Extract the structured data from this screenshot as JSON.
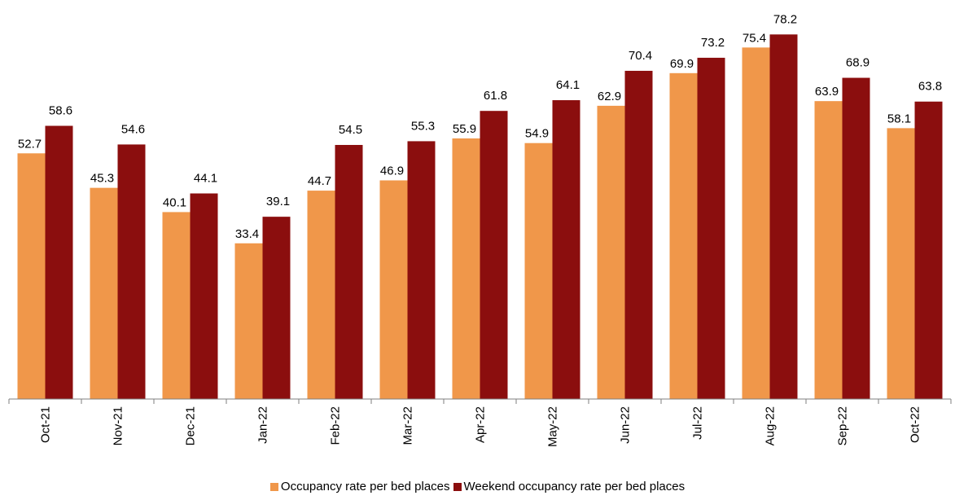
{
  "chart_data": {
    "type": "bar",
    "categories": [
      "Oct-21",
      "Nov-21",
      "Dec-21",
      "Jan-22",
      "Feb-22",
      "Mar-22",
      "Apr-22",
      "May-22",
      "Jun-22",
      "Jul-22",
      "Aug-22",
      "Sep-22",
      "Oct-22"
    ],
    "series": [
      {
        "name": "Occupancy rate per bed places",
        "color": "#F0974A",
        "values": [
          52.7,
          45.3,
          40.1,
          33.4,
          44.7,
          46.9,
          55.9,
          54.9,
          62.9,
          69.9,
          75.4,
          63.9,
          58.1
        ]
      },
      {
        "name": "Weekend occupancy rate per bed places",
        "color": "#8B0E0E",
        "values": [
          58.6,
          54.6,
          44.1,
          39.1,
          54.5,
          55.3,
          61.8,
          64.1,
          70.4,
          73.2,
          78.2,
          68.9,
          63.8
        ]
      }
    ],
    "ylim": [
      0,
      80
    ],
    "grid": false,
    "legend_position": "bottom-center"
  }
}
